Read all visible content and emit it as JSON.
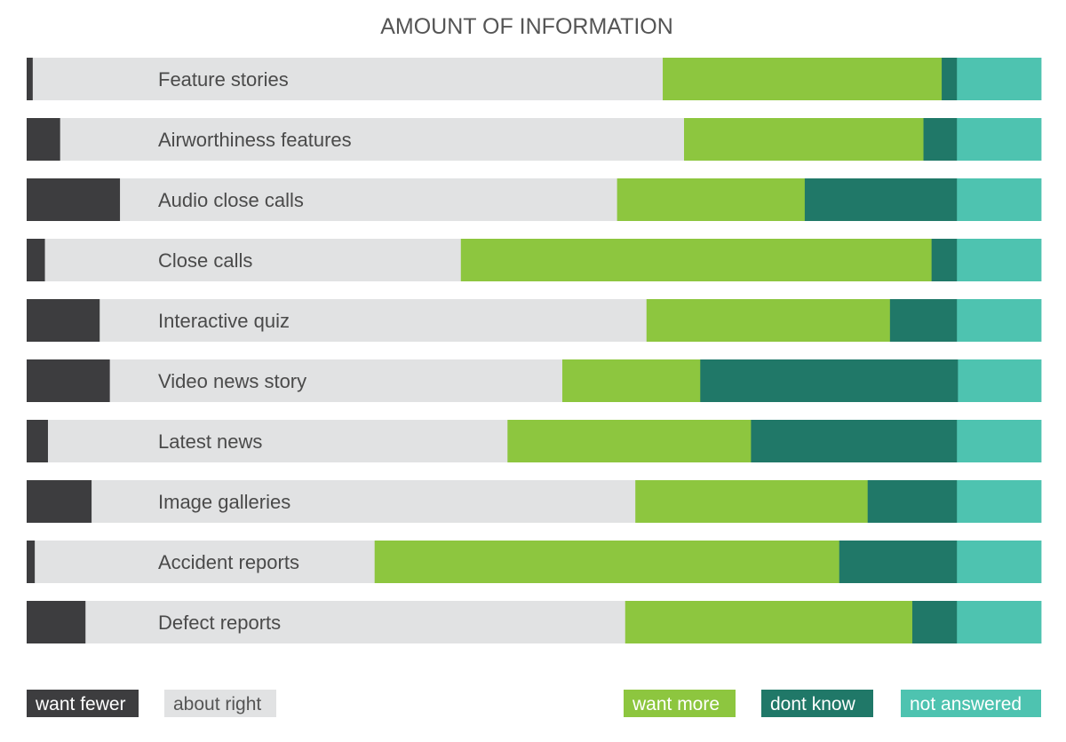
{
  "chart_data": {
    "type": "bar",
    "orientation": "horizontal",
    "stacked": true,
    "percent_stacked": true,
    "title": "AMOUNT OF INFORMATION",
    "xlim": [
      0,
      100
    ],
    "grid": false,
    "legend_placement": "bottom",
    "categories": [
      "Feature stories",
      "Airworthiness features",
      "Audio close calls",
      "Close calls",
      "Interactive quiz",
      "Video news story",
      "Latest news",
      "Image galleries",
      "Accident reports",
      "Defect reports"
    ],
    "series": [
      {
        "name": "want fewer",
        "color": "#3d3d3f",
        "text_color": "#ffffff",
        "values": [
          0.6,
          3.3,
          9.2,
          1.8,
          7.2,
          8.2,
          2.1,
          6.4,
          0.8,
          5.8
        ]
      },
      {
        "name": "about right",
        "color": "#e1e2e3",
        "text_color": "#555555",
        "values": [
          62.1,
          61.5,
          49.0,
          41.0,
          53.9,
          44.6,
          45.3,
          53.6,
          33.5,
          53.2
        ]
      },
      {
        "name": "want more",
        "color": "#8dc63f",
        "text_color": "#ffffff",
        "values": [
          27.5,
          23.6,
          18.5,
          46.4,
          24.0,
          13.6,
          24.0,
          22.9,
          45.8,
          28.3
        ]
      },
      {
        "name": "dont know",
        "color": "#207868",
        "text_color": "#ffffff",
        "values": [
          1.5,
          3.3,
          15.0,
          2.5,
          6.6,
          25.4,
          20.3,
          8.8,
          11.6,
          4.4
        ]
      },
      {
        "name": "not answered",
        "color": "#4ec3b0",
        "text_color": "#ffffff",
        "values": [
          8.3,
          8.3,
          8.3,
          8.3,
          8.3,
          8.2,
          8.3,
          8.3,
          8.3,
          8.3
        ]
      }
    ]
  }
}
